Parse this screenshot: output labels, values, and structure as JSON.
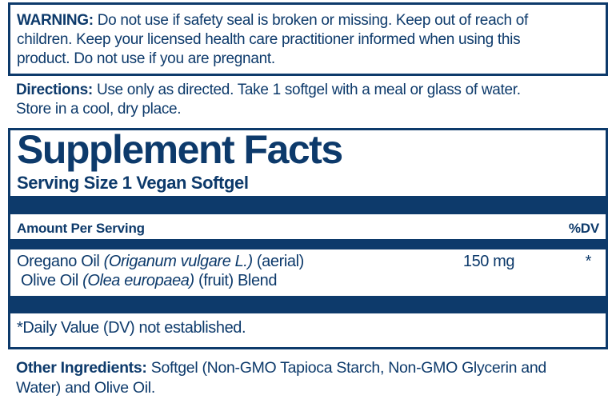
{
  "colors": {
    "navy": "#0d3a6b",
    "background": "#ffffff"
  },
  "warning": {
    "label": "WARNING:",
    "lines": [
      "Do not use if safety seal is broken or missing. Keep out of reach of",
      "children. Keep your licensed health care practitioner informed when using this",
      "product. Do not use if you are pregnant."
    ]
  },
  "directions": {
    "label": "Directions:",
    "lines": [
      "Use only as directed. Take 1 softgel with a meal or glass of water.",
      "Store in a cool, dry place."
    ]
  },
  "panel": {
    "title": "Supplement Facts",
    "serving_size": "Serving Size 1 Vegan Softgel",
    "header": {
      "amount": "Amount Per Serving",
      "dv": "%DV"
    },
    "row": {
      "line1_pre": "Oregano Oil ",
      "line1_latin": "(Origanum vulgare L.)",
      "line1_post": " (aerial)",
      "line2_pre": "Olive Oil ",
      "line2_latin": "(Olea europaea)",
      "line2_post": " (fruit) Blend",
      "amount": "150 mg",
      "dv": "*"
    },
    "footnote": "*Daily Value (DV) not established."
  },
  "other_ingredients": {
    "label": "Other Ingredients:",
    "lines": [
      "Softgel (Non-GMO Tapioca Starch, Non-GMO Glycerin and",
      "Water) and Olive Oil."
    ]
  }
}
